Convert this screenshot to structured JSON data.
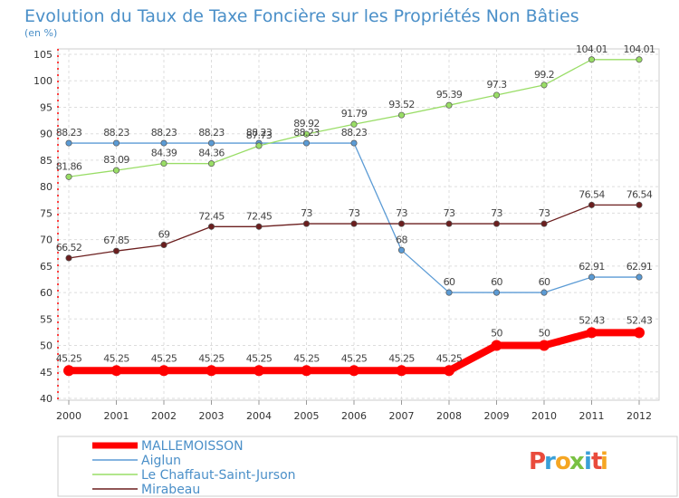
{
  "chart_data": {
    "type": "line",
    "title": "Evolution du Taux de Taxe Foncière sur les Propriétés Non Bâties",
    "subtitle": "(en %)",
    "x": [
      "2000",
      "2001",
      "2002",
      "2003",
      "2004",
      "2005",
      "2006",
      "2007",
      "2008",
      "2009",
      "2010",
      "2011",
      "2012"
    ],
    "ylim": [
      40,
      105
    ],
    "yticks": [
      "40",
      "45",
      "50",
      "55",
      "60",
      "65",
      "70",
      "75",
      "80",
      "85",
      "90",
      "95",
      "100",
      "105"
    ],
    "grid": true,
    "legend_position": "bottom-left",
    "series": [
      {
        "name": "MALLEMOISSON",
        "color": "#ff0000",
        "values": [
          45.25,
          45.25,
          45.25,
          45.25,
          45.25,
          45.25,
          45.25,
          45.25,
          45.25,
          50,
          50,
          52.43,
          52.43
        ],
        "labels": [
          "45.25",
          "45.25",
          "45.25",
          "45.25",
          "45.25",
          "45.25",
          "45.25",
          "45.25",
          "45.25",
          "50",
          "50",
          "52.43",
          "52.43"
        ]
      },
      {
        "name": "Aiglun",
        "color": "#5b9bd5",
        "values": [
          88.23,
          88.23,
          88.23,
          88.23,
          88.23,
          88.23,
          88.23,
          68,
          60,
          60,
          60,
          62.91,
          62.91
        ],
        "labels": [
          "88.23",
          "88.23",
          "88.23",
          "88.23",
          "88.23",
          "88.23",
          "88.23",
          "68",
          "60",
          "60",
          "60",
          "62.91",
          "62.91"
        ]
      },
      {
        "name": "Le Chaffaut-Saint-Jurson",
        "color": "#99dd66",
        "values": [
          81.86,
          83.09,
          84.39,
          84.36,
          87.73,
          89.92,
          91.79,
          93.52,
          95.39,
          97.3,
          99.2,
          104.01,
          104.01
        ],
        "labels": [
          "81.86",
          "83.09",
          "84.39",
          "84.36",
          "87.73",
          "89.92",
          "91.79",
          "93.52",
          "95.39",
          "97.3",
          "99.2",
          "104.01",
          "104.01"
        ]
      },
      {
        "name": "Mirabeau",
        "color": "#6b1e1e",
        "values": [
          66.52,
          67.85,
          69,
          72.45,
          72.45,
          73,
          73,
          73,
          73,
          73,
          73,
          76.54,
          76.54
        ],
        "labels": [
          "66.52",
          "67.85",
          "69",
          "72.45",
          "72.45",
          "73",
          "73",
          "73",
          "73",
          "73",
          "73",
          "76.54",
          "76.54"
        ]
      }
    ]
  },
  "logo": {
    "letters": [
      "P",
      "r",
      "o",
      "x",
      "i",
      "t",
      "i"
    ],
    "colors": [
      "#e94b3c",
      "#3aa0d8",
      "#f5a623",
      "#7ac143",
      "#3aa0d8",
      "#e94b3c",
      "#f5a623"
    ]
  }
}
